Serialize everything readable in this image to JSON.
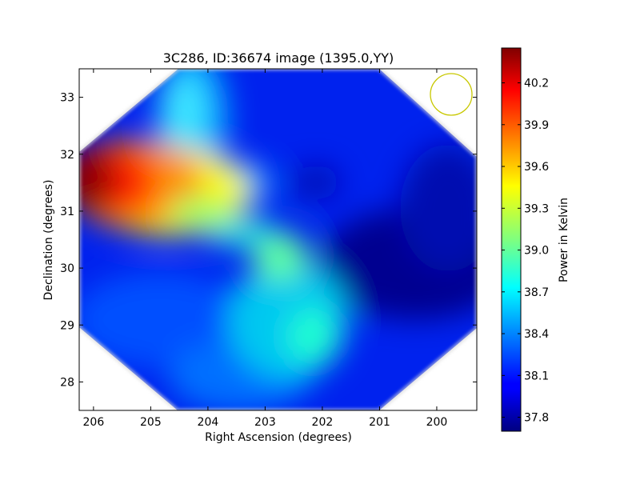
{
  "chart_data": {
    "type": "heatmap",
    "title": "3C286, ID:36674 image (1395.0,YY)",
    "xlabel": "Right Ascension (degrees)",
    "ylabel": "Declination (degrees)",
    "xlim": [
      206.25,
      199.3
    ],
    "ylim": [
      27.5,
      33.5
    ],
    "x_ticks": [
      "206",
      "205",
      "204",
      "203",
      "202",
      "201",
      "200"
    ],
    "y_ticks": [
      "28",
      "29",
      "30",
      "31",
      "32",
      "33"
    ],
    "colorbar": {
      "label": "Power in Kelvin",
      "colormap": "jet",
      "range": [
        37.7,
        40.45
      ],
      "ticks": [
        "37.8",
        "38.1",
        "38.4",
        "38.7",
        "39.0",
        "39.3",
        "39.6",
        "39.9",
        "40.2"
      ]
    },
    "beam_marker": {
      "shape": "circle",
      "color": "#c8c800",
      "center_ra": 199.75,
      "center_dec": 33.05,
      "radius_deg": 0.36
    },
    "data_footprint": "diamond-shaped coverage centered near RA 202.7, Dec 30.5; corners outside footprint are blank",
    "features": [
      {
        "description": "bright hot region",
        "ra": 206.0,
        "dec": 31.3,
        "value": 40.4
      },
      {
        "description": "warm plume extending east-west",
        "ra": 204.5,
        "dec": 31.0,
        "value": 39.5
      },
      {
        "description": "warm ridge",
        "ra": 202.7,
        "dec": 30.2,
        "value": 38.9
      },
      {
        "description": "cold minimum",
        "ra": 200.0,
        "dec": 30.0,
        "value": 37.75
      },
      {
        "description": "cool spot",
        "ra": 202.2,
        "dec": 31.5,
        "value": 38.0
      }
    ]
  }
}
